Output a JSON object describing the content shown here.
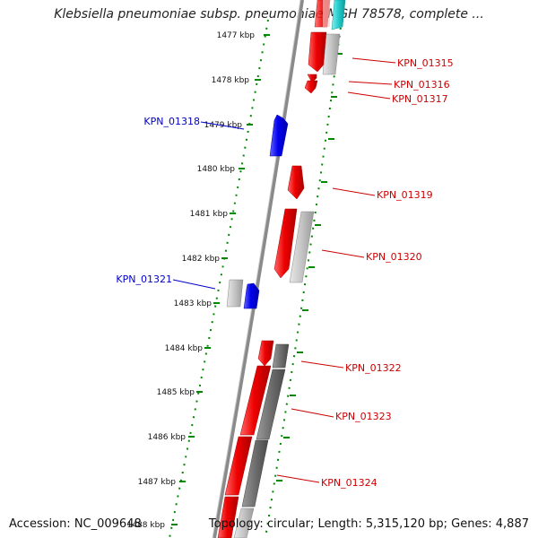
{
  "title": "Klebsiella pneumoniae subsp. pneumoniae MGH 78578, complete ...",
  "footer": {
    "accession": "Accession: NC_009648",
    "summary": "Topology: circular; Length: 5,315,120 bp; Genes: 4,887"
  },
  "ticks": [
    {
      "label": "1477 kbp"
    },
    {
      "label": "1478 kbp"
    },
    {
      "label": "1479 kbp"
    },
    {
      "label": "1480 kbp"
    },
    {
      "label": "1481 kbp"
    },
    {
      "label": "1482 kbp"
    },
    {
      "label": "1483 kbp"
    },
    {
      "label": "1484 kbp"
    },
    {
      "label": "1485 kbp"
    },
    {
      "label": "1486 kbp"
    },
    {
      "label": "1487 kbp"
    },
    {
      "label": "1488 kbp"
    }
  ],
  "gene_labels": [
    {
      "text": "KPN_01315",
      "color": "#cc0000"
    },
    {
      "text": "KPN_01316",
      "color": "#cc0000"
    },
    {
      "text": "KPN_01317",
      "color": "#cc0000"
    },
    {
      "text": "KPN_01318",
      "color": "#0000cc"
    },
    {
      "text": "KPN_01319",
      "color": "#cc0000"
    },
    {
      "text": "KPN_01320",
      "color": "#cc0000"
    },
    {
      "text": "KPN_01321",
      "color": "#0000cc"
    },
    {
      "text": "KPN_01322",
      "color": "#cc0000"
    },
    {
      "text": "KPN_01323",
      "color": "#cc0000"
    },
    {
      "text": "KPN_01324",
      "color": "#cc0000"
    }
  ],
  "colors": {
    "forward_cds": "#ee0000",
    "reverse_cds": "#0000ee",
    "feature_light": "#c0c0c0",
    "feature_dark": "#707070",
    "feature_cyan": "#22cccc",
    "tick_green": "#008800",
    "backbone": "#888888"
  }
}
